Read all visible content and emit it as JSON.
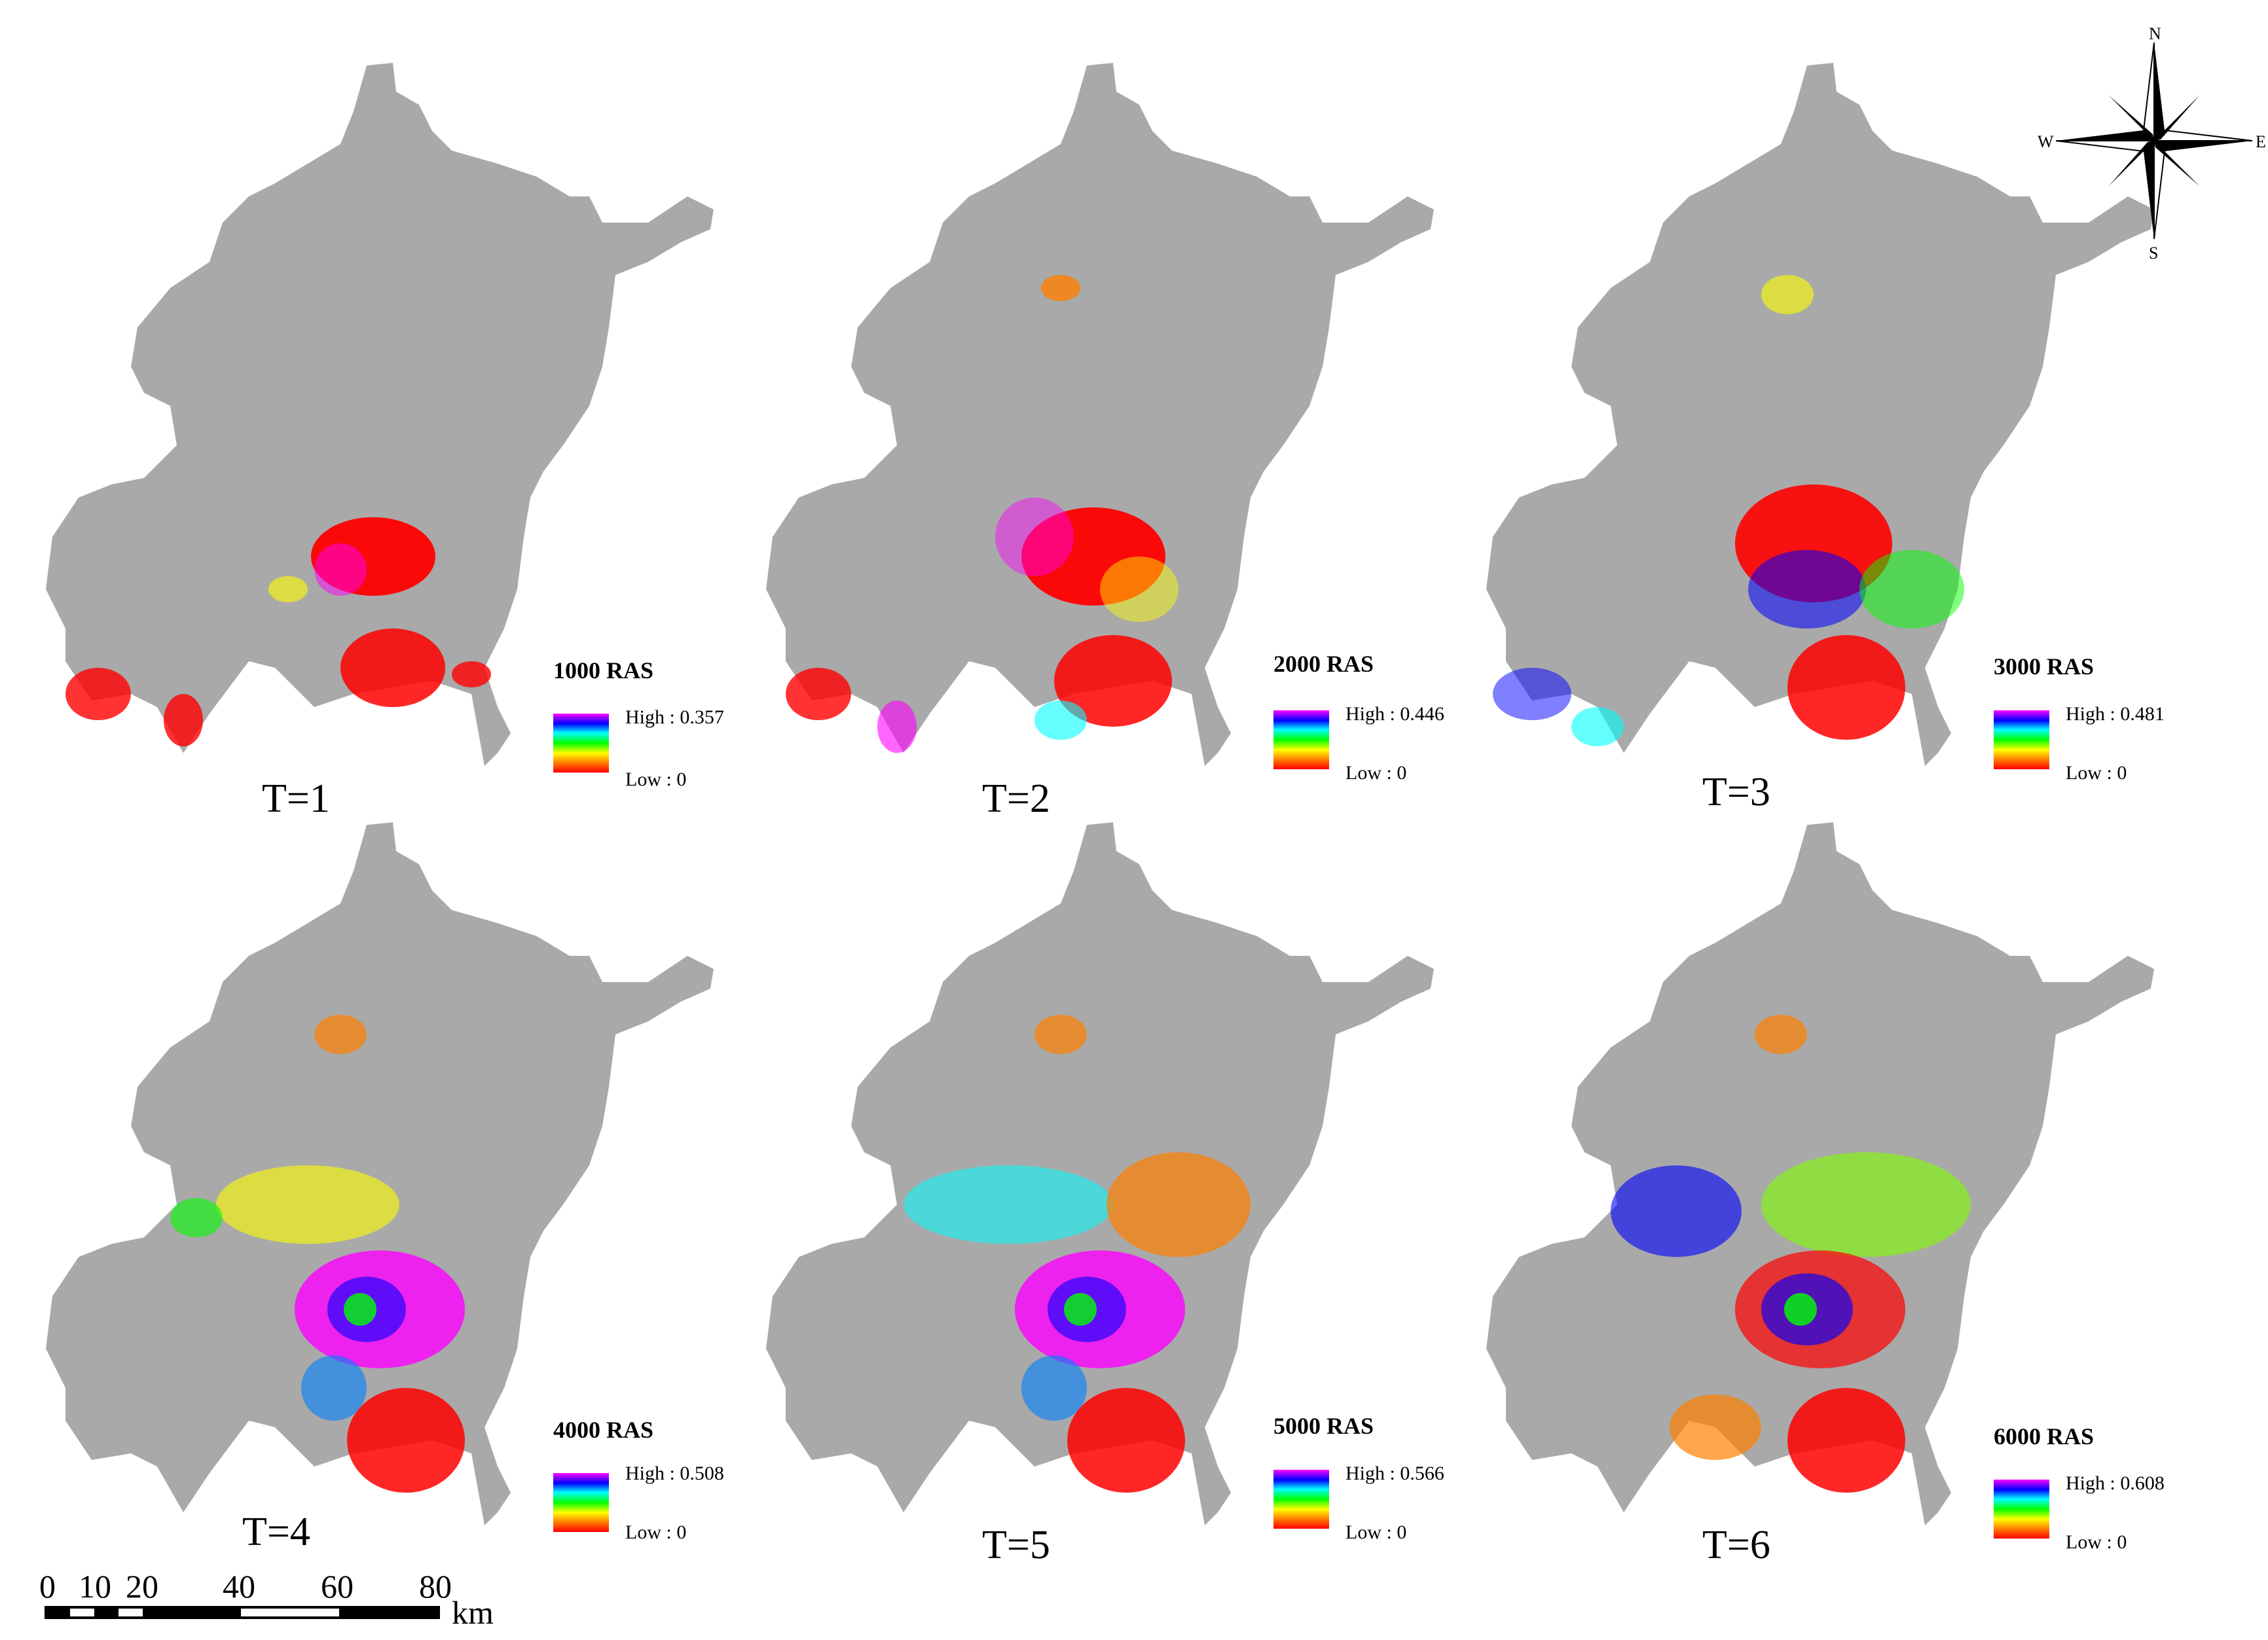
{
  "panels": [
    {
      "label": "T=1",
      "legend_title": "1000 RAS",
      "legend_high": "High : 0.357",
      "legend_low": "Low : 0",
      "high_value": 0.357,
      "low_value": 0
    },
    {
      "label": "T=2",
      "legend_title": "2000 RAS",
      "legend_high": "High : 0.446",
      "legend_low": "Low : 0",
      "high_value": 0.446,
      "low_value": 0
    },
    {
      "label": "T=3",
      "legend_title": "3000 RAS",
      "legend_high": "High : 0.481",
      "legend_low": "Low : 0",
      "high_value": 0.481,
      "low_value": 0
    },
    {
      "label": "T=4",
      "legend_title": "4000 RAS",
      "legend_high": "High : 0.508",
      "legend_low": "Low : 0",
      "high_value": 0.508,
      "low_value": 0
    },
    {
      "label": "T=5",
      "legend_title": "5000 RAS",
      "legend_high": "High : 0.566",
      "legend_low": "Low : 0",
      "high_value": 0.566,
      "low_value": 0
    },
    {
      "label": "T=6",
      "legend_title": "6000 RAS",
      "legend_high": "High : 0.608",
      "legend_low": "Low : 0",
      "high_value": 0.608,
      "low_value": 0
    }
  ],
  "compass": {
    "n": "N",
    "s": "S",
    "e": "E",
    "w": "W"
  },
  "scale_bar": {
    "ticks": [
      "0",
      "10",
      "20",
      "40",
      "60",
      "80"
    ],
    "unit": "km"
  },
  "colors": {
    "background_region": "#a9a9a9",
    "ramp": [
      "#ff0000",
      "#ff8000",
      "#ffff00",
      "#00ff00",
      "#00ffff",
      "#0000ff",
      "#ff00ff"
    ]
  }
}
